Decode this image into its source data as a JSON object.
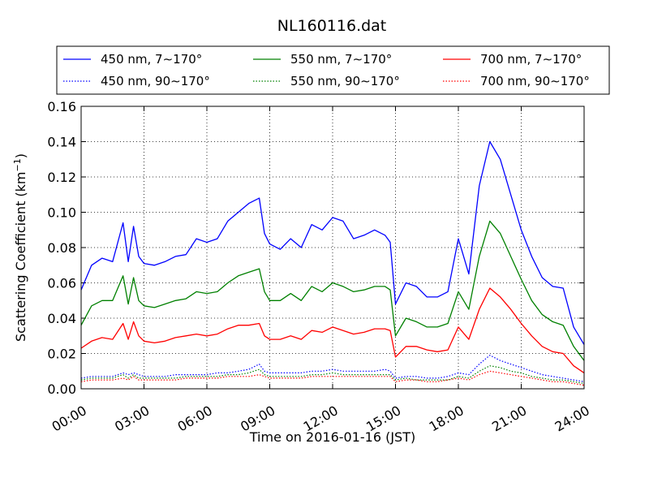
{
  "chart_data": {
    "type": "line",
    "title": "NL160116.dat",
    "xlabel": "Time on 2016-01-16 (JST)",
    "ylabel": "Scattering Coefficient (km",
    "ylabel_sup": "−1",
    "ylabel_tail": ")",
    "xlim": [
      "00:00",
      "24:00"
    ],
    "ylim": [
      0,
      0.16
    ],
    "grid": true,
    "legend_position": "top",
    "x_ticks": [
      "00:00",
      "03:00",
      "06:00",
      "09:00",
      "12:00",
      "15:00",
      "18:00",
      "21:00",
      "24:00"
    ],
    "y_ticks": [
      "0.00",
      "0.02",
      "0.04",
      "0.06",
      "0.08",
      "0.10",
      "0.12",
      "0.14",
      "0.16"
    ],
    "x_hours": [
      0,
      0.5,
      1,
      1.5,
      2,
      2.25,
      2.5,
      2.75,
      3,
      3.5,
      4,
      4.5,
      5,
      5.5,
      6,
      6.5,
      7,
      7.5,
      8,
      8.5,
      8.75,
      9,
      9.5,
      10,
      10.5,
      11,
      11.5,
      12,
      12.5,
      13,
      13.5,
      14,
      14.5,
      14.75,
      15,
      15.5,
      16,
      16.5,
      17,
      17.5,
      18,
      18.5,
      19,
      19.5,
      20,
      20.5,
      21,
      21.5,
      22,
      22.5,
      23,
      23.5,
      24
    ],
    "series": [
      {
        "name": "450 nm, 7∼170°",
        "color": "#0000ff",
        "style": "solid",
        "values": [
          0.056,
          0.07,
          0.074,
          0.072,
          0.094,
          0.072,
          0.092,
          0.075,
          0.071,
          0.07,
          0.072,
          0.075,
          0.076,
          0.085,
          0.083,
          0.085,
          0.095,
          0.1,
          0.105,
          0.108,
          0.088,
          0.082,
          0.079,
          0.085,
          0.08,
          0.093,
          0.09,
          0.097,
          0.095,
          0.085,
          0.087,
          0.09,
          0.087,
          0.083,
          0.048,
          0.06,
          0.058,
          0.052,
          0.052,
          0.055,
          0.085,
          0.065,
          0.115,
          0.14,
          0.13,
          0.11,
          0.09,
          0.075,
          0.063,
          0.058,
          0.057,
          0.035,
          0.025
        ]
      },
      {
        "name": "450 nm, 90∼170°",
        "color": "#0000ff",
        "style": "dotted",
        "values": [
          0.006,
          0.007,
          0.007,
          0.007,
          0.009,
          0.008,
          0.009,
          0.008,
          0.007,
          0.007,
          0.007,
          0.008,
          0.008,
          0.008,
          0.008,
          0.009,
          0.009,
          0.01,
          0.011,
          0.014,
          0.01,
          0.009,
          0.009,
          0.009,
          0.009,
          0.01,
          0.01,
          0.011,
          0.01,
          0.01,
          0.01,
          0.01,
          0.011,
          0.01,
          0.006,
          0.007,
          0.007,
          0.006,
          0.006,
          0.007,
          0.009,
          0.008,
          0.014,
          0.019,
          0.016,
          0.014,
          0.012,
          0.01,
          0.008,
          0.007,
          0.006,
          0.005,
          0.004
        ]
      },
      {
        "name": "550 nm, 7∼170°",
        "color": "#008000",
        "style": "solid",
        "values": [
          0.036,
          0.047,
          0.05,
          0.05,
          0.064,
          0.048,
          0.063,
          0.05,
          0.047,
          0.046,
          0.048,
          0.05,
          0.051,
          0.055,
          0.054,
          0.055,
          0.06,
          0.064,
          0.066,
          0.068,
          0.055,
          0.05,
          0.05,
          0.054,
          0.05,
          0.058,
          0.055,
          0.06,
          0.058,
          0.055,
          0.056,
          0.058,
          0.058,
          0.056,
          0.03,
          0.04,
          0.038,
          0.035,
          0.035,
          0.037,
          0.055,
          0.045,
          0.075,
          0.095,
          0.088,
          0.075,
          0.062,
          0.05,
          0.042,
          0.038,
          0.036,
          0.024,
          0.016
        ]
      },
      {
        "name": "550 nm, 90∼170°",
        "color": "#008000",
        "style": "dotted",
        "values": [
          0.005,
          0.006,
          0.006,
          0.006,
          0.008,
          0.006,
          0.008,
          0.006,
          0.006,
          0.006,
          0.006,
          0.006,
          0.007,
          0.007,
          0.007,
          0.007,
          0.008,
          0.008,
          0.009,
          0.011,
          0.008,
          0.007,
          0.007,
          0.007,
          0.007,
          0.008,
          0.008,
          0.009,
          0.008,
          0.008,
          0.008,
          0.008,
          0.008,
          0.008,
          0.005,
          0.006,
          0.005,
          0.005,
          0.005,
          0.005,
          0.007,
          0.006,
          0.01,
          0.013,
          0.012,
          0.01,
          0.009,
          0.007,
          0.006,
          0.005,
          0.005,
          0.004,
          0.003
        ]
      },
      {
        "name": "700 nm, 7∼170°",
        "color": "#ff0000",
        "style": "solid",
        "values": [
          0.023,
          0.027,
          0.029,
          0.028,
          0.037,
          0.028,
          0.038,
          0.03,
          0.027,
          0.026,
          0.027,
          0.029,
          0.03,
          0.031,
          0.03,
          0.031,
          0.034,
          0.036,
          0.036,
          0.037,
          0.03,
          0.028,
          0.028,
          0.03,
          0.028,
          0.033,
          0.032,
          0.035,
          0.033,
          0.031,
          0.032,
          0.034,
          0.034,
          0.033,
          0.018,
          0.024,
          0.024,
          0.022,
          0.021,
          0.022,
          0.035,
          0.028,
          0.045,
          0.057,
          0.052,
          0.045,
          0.037,
          0.03,
          0.024,
          0.021,
          0.02,
          0.013,
          0.009
        ]
      },
      {
        "name": "700 nm, 90∼170°",
        "color": "#ff0000",
        "style": "dotted",
        "values": [
          0.004,
          0.005,
          0.005,
          0.005,
          0.006,
          0.005,
          0.007,
          0.005,
          0.005,
          0.005,
          0.005,
          0.005,
          0.006,
          0.006,
          0.006,
          0.006,
          0.007,
          0.007,
          0.007,
          0.008,
          0.007,
          0.006,
          0.006,
          0.006,
          0.006,
          0.007,
          0.007,
          0.007,
          0.007,
          0.007,
          0.007,
          0.007,
          0.007,
          0.007,
          0.004,
          0.005,
          0.005,
          0.004,
          0.004,
          0.005,
          0.006,
          0.005,
          0.008,
          0.01,
          0.009,
          0.008,
          0.007,
          0.006,
          0.005,
          0.004,
          0.004,
          0.003,
          0.002
        ]
      }
    ]
  }
}
